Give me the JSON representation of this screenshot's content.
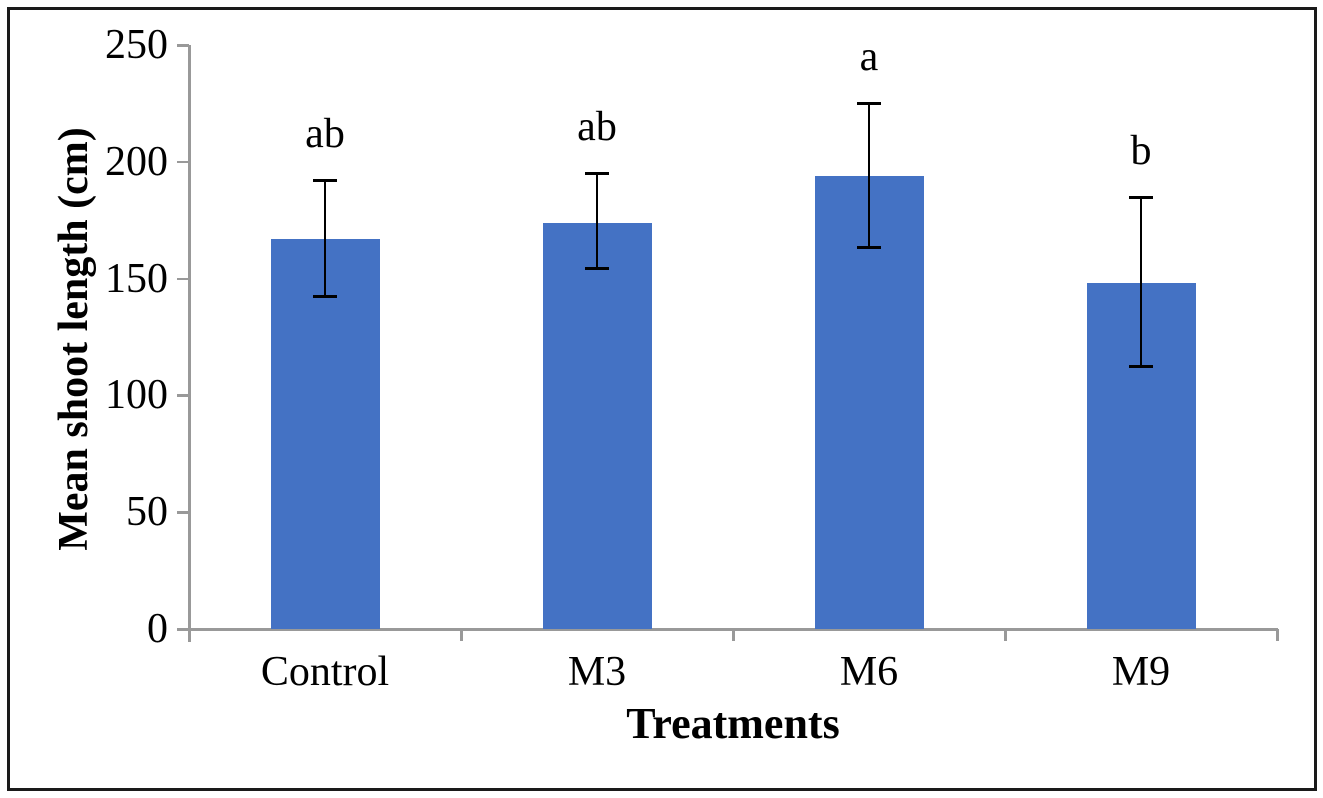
{
  "figure": {
    "background_color": "#ffffff",
    "frame_color": "#1a1a1a"
  },
  "chart_data": {
    "type": "bar",
    "title": "",
    "xlabel": "Treatments",
    "ylabel": "Mean shoot length (cm)",
    "categories": [
      "Control",
      "M3",
      "M6",
      "M9"
    ],
    "values": [
      167,
      174,
      194,
      148
    ],
    "error_low": [
      142,
      154,
      163,
      112
    ],
    "error_high": [
      192,
      195,
      225,
      185
    ],
    "sig_letters": [
      "ab",
      "ab",
      "a",
      "b"
    ],
    "ylim": [
      0,
      250
    ],
    "ytick_step": 50,
    "ytick_labels": [
      "0",
      "50",
      "100",
      "150",
      "200",
      "250"
    ],
    "grid": "off",
    "legend": "none",
    "bar_color": "#4472C4",
    "axis_color": "#999999",
    "error_bar_color": "#000000",
    "text_color": "#000000"
  }
}
